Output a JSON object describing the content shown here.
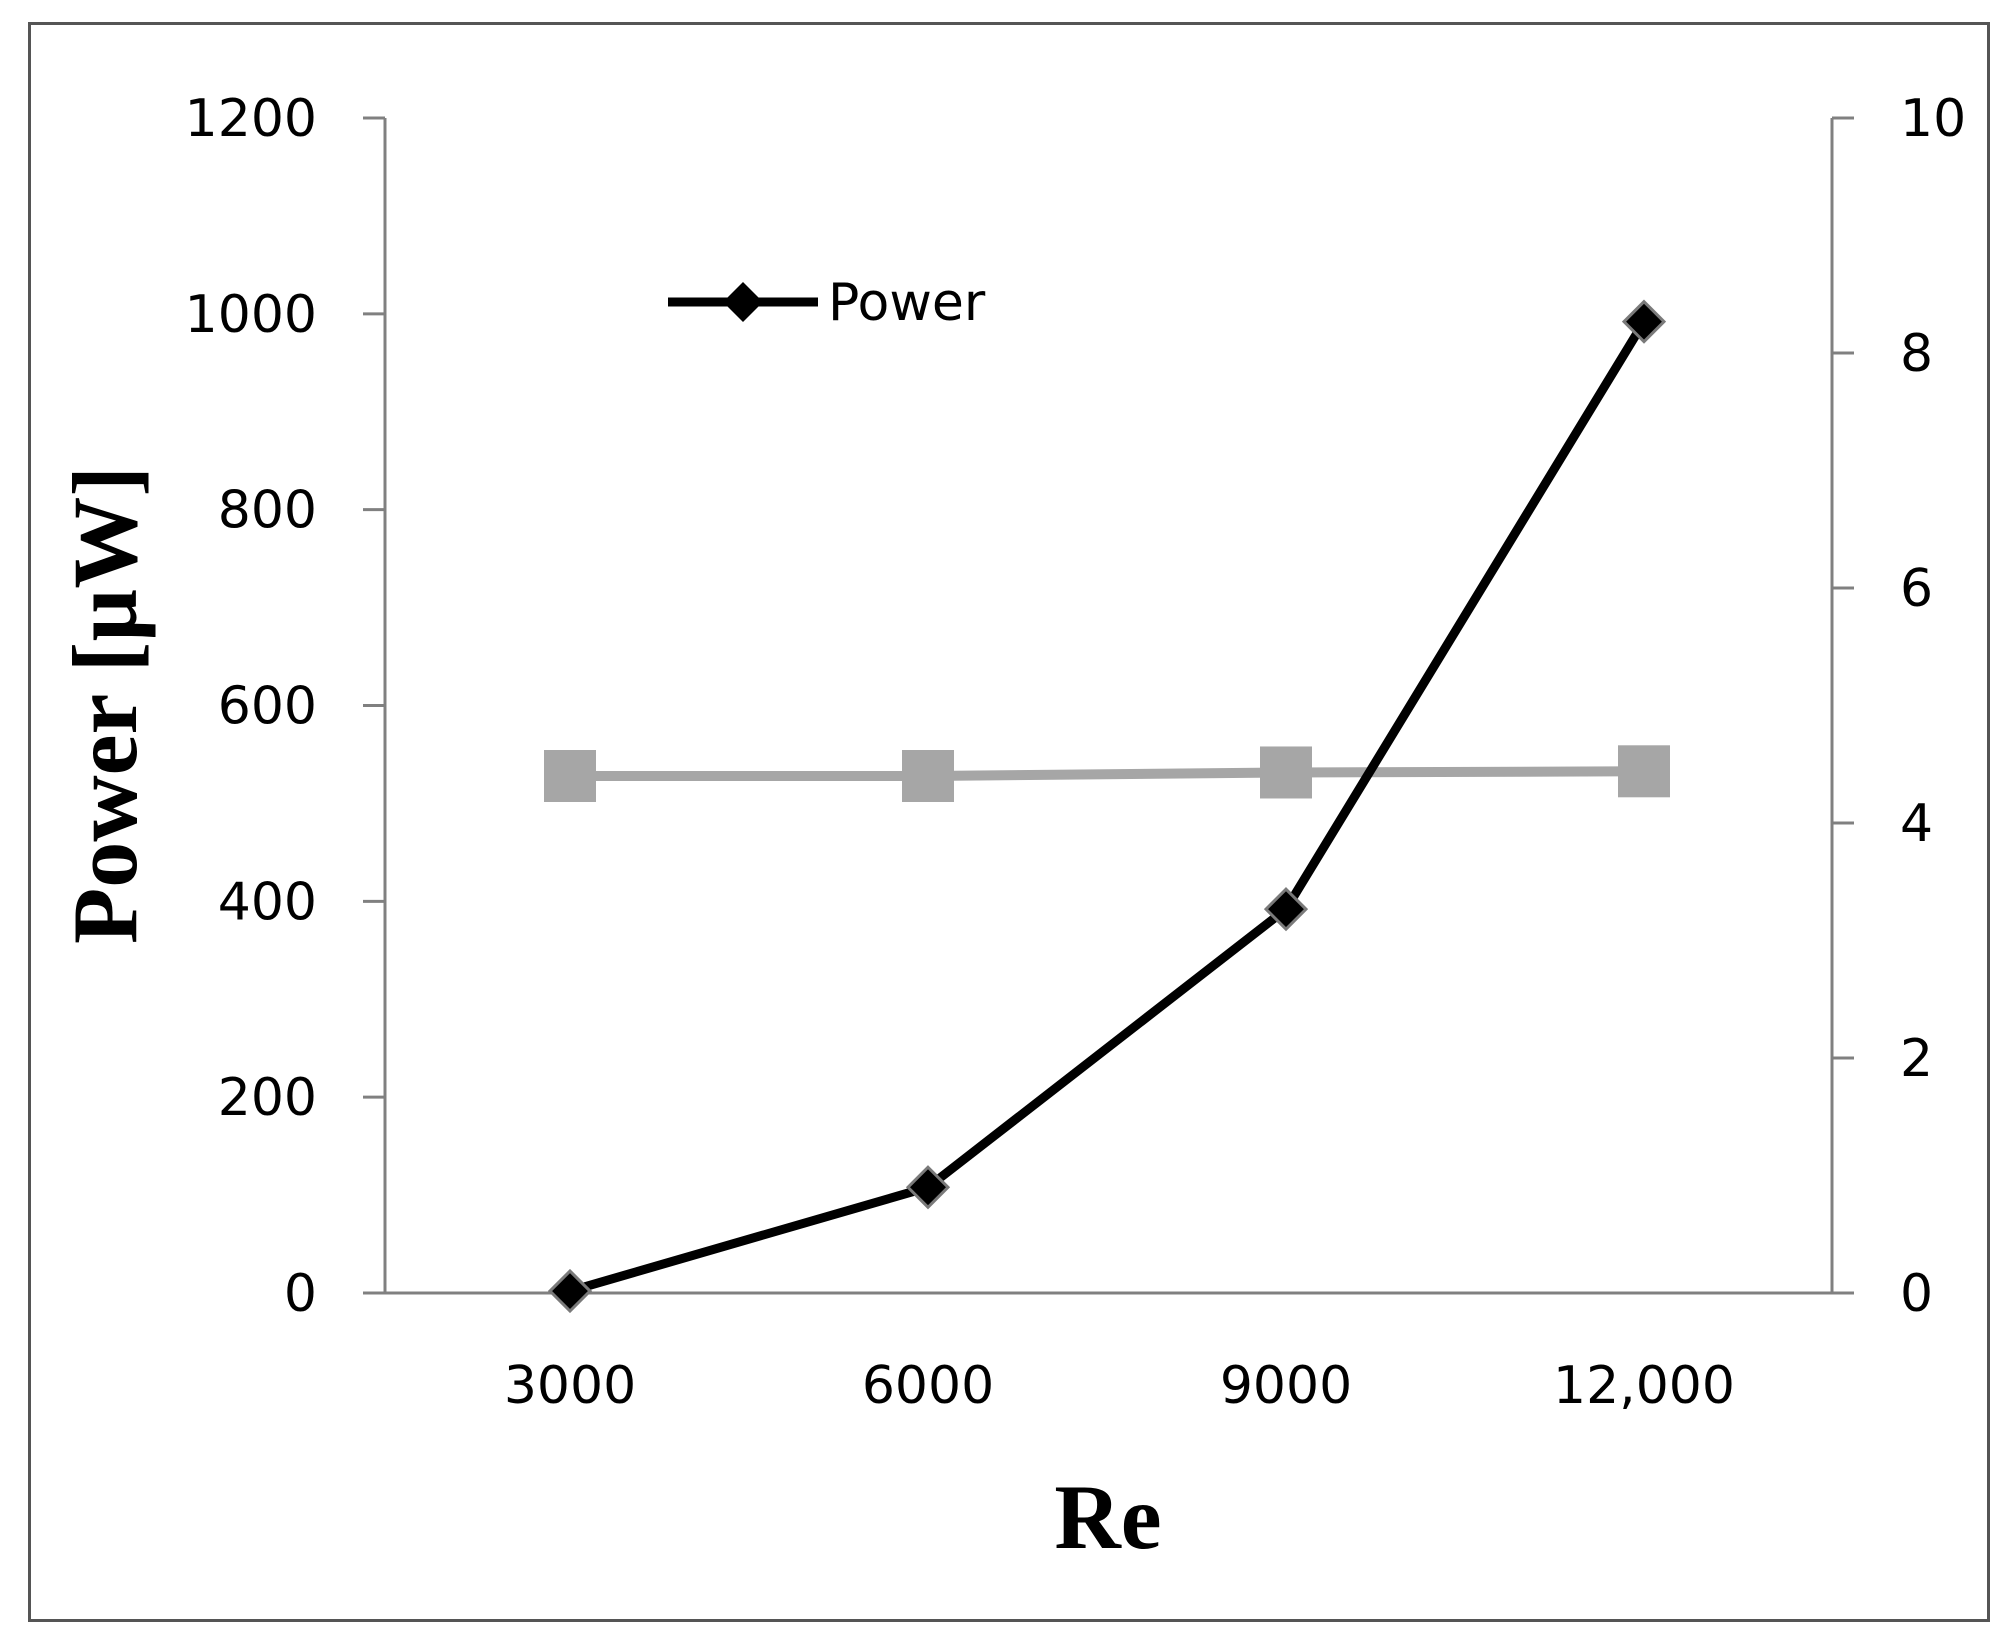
{
  "chart_data": {
    "type": "line",
    "title": "",
    "xlabel": "Re",
    "ylabel": "Power [µW]",
    "categories": [
      "3000",
      "6000",
      "9000",
      "12,000"
    ],
    "ylim": [
      0,
      1200
    ],
    "yticks": [
      "0",
      "200",
      "400",
      "600",
      "800",
      "1000",
      "1200"
    ],
    "y2lim": [
      0,
      10
    ],
    "y2ticks": [
      "0",
      "2",
      "4",
      "6",
      "8",
      "10"
    ],
    "grid": false,
    "legend": {
      "position": "top-left",
      "entries": [
        "Power"
      ]
    },
    "series": [
      {
        "name": "Power",
        "axis": "left",
        "marker": "diamond",
        "color": "#000000",
        "values": [
          2,
          108,
          392,
          992
        ]
      },
      {
        "axis": "right",
        "marker": "square",
        "color": "#a6a6a6",
        "values": [
          4.4,
          4.4,
          4.43,
          4.44
        ]
      }
    ]
  }
}
